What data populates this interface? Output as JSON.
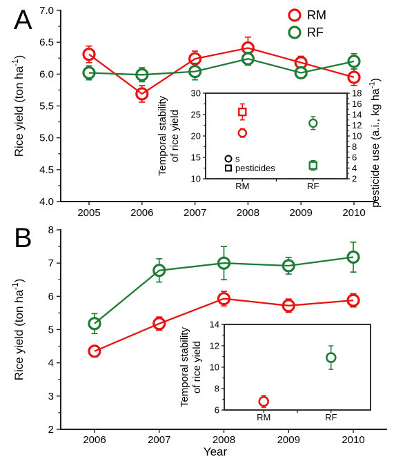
{
  "colors": {
    "rm": "#e81212",
    "rf": "#1d7d34",
    "axis": "#1a1a1a",
    "background": "#ffffff"
  },
  "chart_data": [
    {
      "type": "line",
      "panel_label": "A",
      "x": [
        2005,
        2006,
        2007,
        2008,
        2009,
        2010
      ],
      "ylim": [
        4.0,
        7.0
      ],
      "y_ticks": [
        "7.0",
        "6.5",
        "6.0",
        "5.5",
        "5.0",
        "4.5",
        "4.0"
      ],
      "ylabel_parts": [
        "Rice yield (ton ha",
        "-1",
        ")"
      ],
      "grid": false,
      "legend_position": "top-right",
      "legend_entries": [
        "RM",
        "RF"
      ],
      "series": [
        {
          "name": "RM",
          "color": "#e81212",
          "values": [
            6.31,
            5.69,
            6.24,
            6.41,
            6.18,
            5.95
          ],
          "errors": [
            0.13,
            0.13,
            0.12,
            0.17,
            0.1,
            0.13
          ]
        },
        {
          "name": "RF",
          "color": "#1d7d34",
          "values": [
            6.02,
            5.99,
            6.04,
            6.24,
            6.02,
            6.2
          ],
          "errors": [
            0.11,
            0.11,
            0.13,
            0.1,
            0.08,
            0.12
          ]
        }
      ],
      "inset": {
        "type": "scatter",
        "ylabel_lines": [
          "Temporal stability",
          "of rice yield"
        ],
        "ylim_left": [
          10,
          30
        ],
        "left_ticks": [
          30,
          25,
          20,
          15,
          10
        ],
        "ylim_right": [
          2,
          18
        ],
        "right_ticks": [
          18,
          16,
          14,
          12,
          10,
          8,
          6,
          4,
          2
        ],
        "right_label_parts": [
          "pesticide use (a.i., kg ha",
          "-1",
          ")"
        ],
        "categories": [
          "RM",
          "RF"
        ],
        "points": [
          {
            "category": "RM",
            "series": "pesticides",
            "marker": "square",
            "axis": "right",
            "color": "#e81212",
            "value": 14.5,
            "error": 1.5
          },
          {
            "category": "RM",
            "series": "s",
            "marker": "circle",
            "axis": "left",
            "color": "#e81212",
            "value": 20.7,
            "error": 1.0
          },
          {
            "category": "RF",
            "series": "s",
            "marker": "circle",
            "axis": "left",
            "color": "#1d7d34",
            "value": 23.0,
            "error": 1.5
          },
          {
            "category": "RF",
            "series": "pesticides",
            "marker": "square",
            "axis": "right",
            "color": "#1d7d34",
            "value": 4.5,
            "error": 0.9
          }
        ],
        "legend": [
          {
            "marker": "circle",
            "label": "s"
          },
          {
            "marker": "square",
            "label": "pesticides"
          }
        ]
      }
    },
    {
      "type": "line",
      "panel_label": "B",
      "x": [
        2006,
        2007,
        2008,
        2009,
        2010
      ],
      "xlabel": "Year",
      "ylim": [
        2,
        8
      ],
      "y_ticks": [
        "8",
        "7",
        "6",
        "5",
        "4",
        "3",
        "2"
      ],
      "ylabel_parts": [
        "Rice yield (ton ha",
        "-1",
        ")"
      ],
      "grid": false,
      "series": [
        {
          "name": "RM",
          "color": "#e81212",
          "values": [
            4.35,
            5.18,
            5.93,
            5.72,
            5.88
          ],
          "errors": [
            0.17,
            0.2,
            0.22,
            0.2,
            0.2
          ]
        },
        {
          "name": "RF",
          "color": "#1d7d34",
          "values": [
            5.18,
            6.78,
            7.0,
            6.92,
            7.18
          ],
          "errors": [
            0.3,
            0.35,
            0.5,
            0.25,
            0.45
          ]
        }
      ],
      "inset": {
        "type": "scatter",
        "ylabel_lines": [
          "Temporal stability",
          "of rice yield"
        ],
        "ylim_left": [
          6,
          14
        ],
        "left_ticks": [
          14,
          12,
          10,
          8,
          6
        ],
        "categories": [
          "RM",
          "RF"
        ],
        "points": [
          {
            "category": "RM",
            "series": "s",
            "marker": "circle",
            "axis": "left",
            "color": "#e81212",
            "value": 6.8,
            "error": 0.55
          },
          {
            "category": "RF",
            "series": "s",
            "marker": "circle",
            "axis": "left",
            "color": "#1d7d34",
            "value": 10.9,
            "error": 1.1
          }
        ]
      }
    }
  ]
}
